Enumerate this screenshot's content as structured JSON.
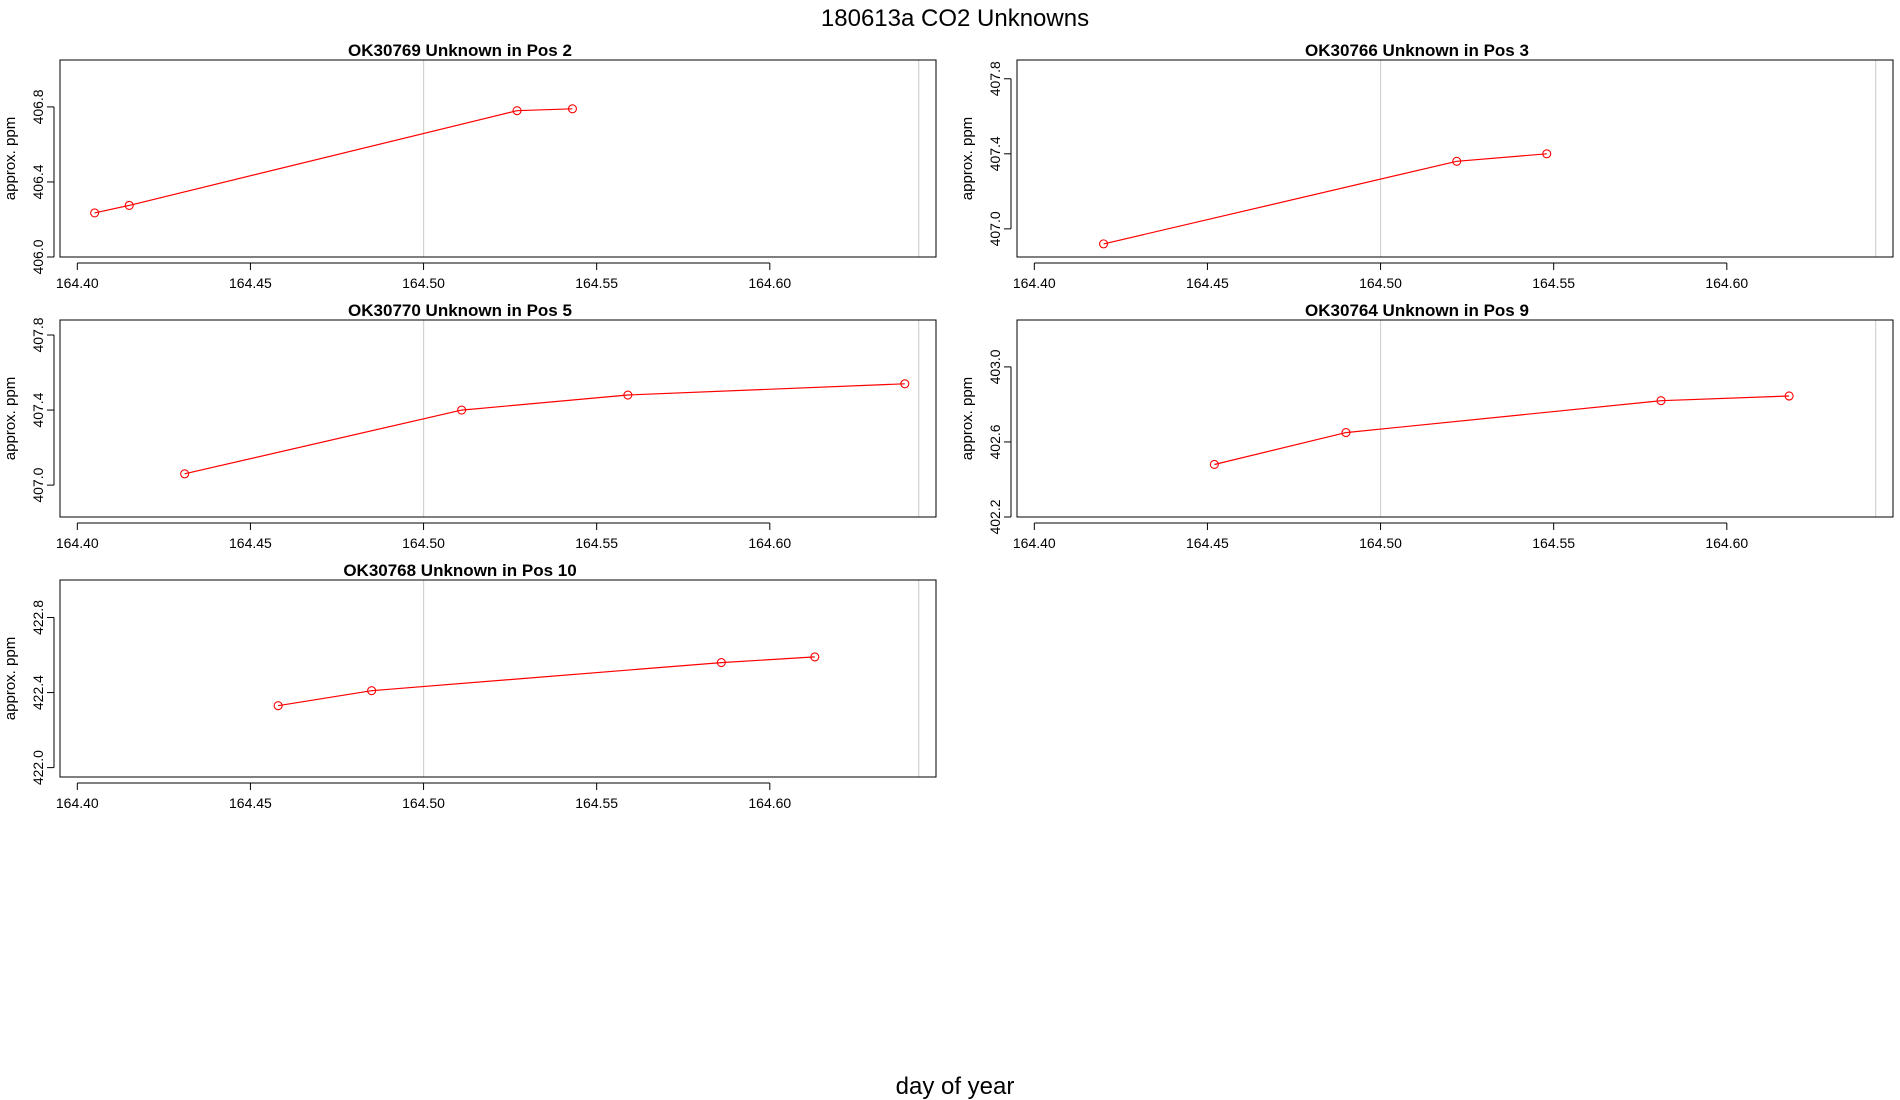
{
  "title": "180613a  CO2 Unknowns",
  "xlabel": "day of year",
  "colors": {
    "series": "#ff0000",
    "vline": "#d3d3d3",
    "axis": "#000000"
  },
  "chart_data": [
    {
      "type": "line",
      "title": "OK30769    Unknown in Pos 2",
      "xlabel": "day of year",
      "ylabel": "approx. ppm",
      "xlim": [
        164.395,
        164.648
      ],
      "ylim": [
        406.0,
        407.05
      ],
      "xticks": [
        164.4,
        164.45,
        164.5,
        164.55,
        164.6
      ],
      "xtick_labels": [
        "164.40",
        "164.45",
        "164.50",
        "164.55",
        "164.60"
      ],
      "yticks": [
        406.0,
        406.4,
        406.8
      ],
      "ytick_labels": [
        "406.0",
        "406.4",
        "406.8"
      ],
      "vlines": [
        164.5,
        164.643
      ],
      "x": [
        164.405,
        164.415,
        164.527,
        164.543
      ],
      "y": [
        406.235,
        406.275,
        406.78,
        406.79
      ]
    },
    {
      "type": "line",
      "title": "OK30766    Unknown in Pos 3",
      "xlabel": "day of year",
      "ylabel": "approx. ppm",
      "xlim": [
        164.395,
        164.648
      ],
      "ylim": [
        406.85,
        407.9
      ],
      "xticks": [
        164.4,
        164.45,
        164.5,
        164.55,
        164.6
      ],
      "xtick_labels": [
        "164.40",
        "164.45",
        "164.50",
        "164.55",
        "164.60"
      ],
      "yticks": [
        407.0,
        407.4,
        407.8
      ],
      "ytick_labels": [
        "407.0",
        "407.4",
        "407.8"
      ],
      "vlines": [
        164.5,
        164.643
      ],
      "x": [
        164.42,
        164.522,
        164.548
      ],
      "y": [
        406.92,
        407.36,
        407.4
      ]
    },
    {
      "type": "line",
      "title": "OK30770    Unknown in Pos 5",
      "xlabel": "day of year",
      "ylabel": "approx. ppm",
      "xlim": [
        164.395,
        164.648
      ],
      "ylim": [
        406.83,
        407.88
      ],
      "xticks": [
        164.4,
        164.45,
        164.5,
        164.55,
        164.6
      ],
      "xtick_labels": [
        "164.40",
        "164.45",
        "164.50",
        "164.55",
        "164.60"
      ],
      "yticks": [
        407.0,
        407.4,
        407.8
      ],
      "ytick_labels": [
        "407.0",
        "407.4",
        "407.8"
      ],
      "vlines": [
        164.5,
        164.643
      ],
      "x": [
        164.431,
        164.511,
        164.559,
        164.639
      ],
      "y": [
        407.06,
        407.4,
        407.48,
        407.54
      ]
    },
    {
      "type": "line",
      "title": "OK30764    Unknown in Pos 9",
      "xlabel": "day of year",
      "ylabel": "approx. ppm",
      "xlim": [
        164.395,
        164.648
      ],
      "ylim": [
        402.2,
        403.25
      ],
      "xticks": [
        164.4,
        164.45,
        164.5,
        164.55,
        164.6
      ],
      "xtick_labels": [
        "164.40",
        "164.45",
        "164.50",
        "164.55",
        "164.60"
      ],
      "yticks": [
        402.2,
        402.6,
        403.0
      ],
      "ytick_labels": [
        "402.2",
        "402.6",
        "403.0"
      ],
      "vlines": [
        164.5,
        164.643
      ],
      "x": [
        164.452,
        164.49,
        164.581,
        164.618
      ],
      "y": [
        402.48,
        402.65,
        402.82,
        402.845
      ]
    },
    {
      "type": "line",
      "title": "OK30768    Unknown in Pos 10",
      "xlabel": "day of year",
      "ylabel": "approx. ppm",
      "xlim": [
        164.395,
        164.648
      ],
      "ylim": [
        421.95,
        423.0
      ],
      "xticks": [
        164.4,
        164.45,
        164.5,
        164.55,
        164.6
      ],
      "xtick_labels": [
        "164.40",
        "164.45",
        "164.50",
        "164.55",
        "164.60"
      ],
      "yticks": [
        422.0,
        422.4,
        422.8
      ],
      "ytick_labels": [
        "422.0",
        "422.4",
        "422.8"
      ],
      "vlines": [
        164.5,
        164.643
      ],
      "x": [
        164.458,
        164.485,
        164.586,
        164.613
      ],
      "y": [
        422.33,
        422.41,
        422.56,
        422.59
      ]
    }
  ]
}
